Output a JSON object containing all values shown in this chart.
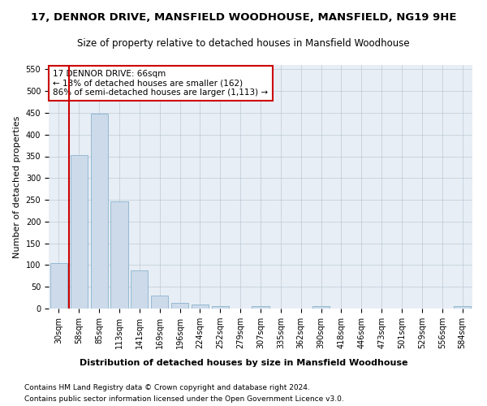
{
  "title": "17, DENNOR DRIVE, MANSFIELD WOODHOUSE, MANSFIELD, NG19 9HE",
  "subtitle": "Size of property relative to detached houses in Mansfield Woodhouse",
  "xlabel": "Distribution of detached houses by size in Mansfield Woodhouse",
  "ylabel": "Number of detached properties",
  "footnote1": "Contains HM Land Registry data © Crown copyright and database right 2024.",
  "footnote2": "Contains public sector information licensed under the Open Government Licence v3.0.",
  "annotation_line1": "17 DENNOR DRIVE: 66sqm",
  "annotation_line2": "← 13% of detached houses are smaller (162)",
  "annotation_line3": "86% of semi-detached houses are larger (1,113) →",
  "bar_labels": [
    "30sqm",
    "58sqm",
    "85sqm",
    "113sqm",
    "141sqm",
    "169sqm",
    "196sqm",
    "224sqm",
    "252sqm",
    "279sqm",
    "307sqm",
    "335sqm",
    "362sqm",
    "390sqm",
    "418sqm",
    "446sqm",
    "473sqm",
    "501sqm",
    "529sqm",
    "556sqm",
    "584sqm"
  ],
  "bar_values": [
    104,
    353,
    448,
    246,
    88,
    30,
    14,
    10,
    6,
    0,
    5,
    0,
    0,
    5,
    0,
    0,
    0,
    0,
    0,
    0,
    5
  ],
  "bar_color": "#ccdaea",
  "bar_edge_color": "#7aaac8",
  "vline_pos": 1.0,
  "vline_color": "#cc0000",
  "ylim": [
    0,
    560
  ],
  "yticks": [
    0,
    50,
    100,
    150,
    200,
    250,
    300,
    350,
    400,
    450,
    500,
    550
  ],
  "bg_color": "#e8eef5",
  "annotation_box_color": "#ffffff",
  "annotation_box_edge": "#cc0000",
  "title_fontsize": 9.5,
  "subtitle_fontsize": 8.5,
  "axis_label_fontsize": 8,
  "tick_fontsize": 7,
  "annotation_fontsize": 7.5,
  "footnote_fontsize": 6.5,
  "ylabel_fontsize": 8
}
